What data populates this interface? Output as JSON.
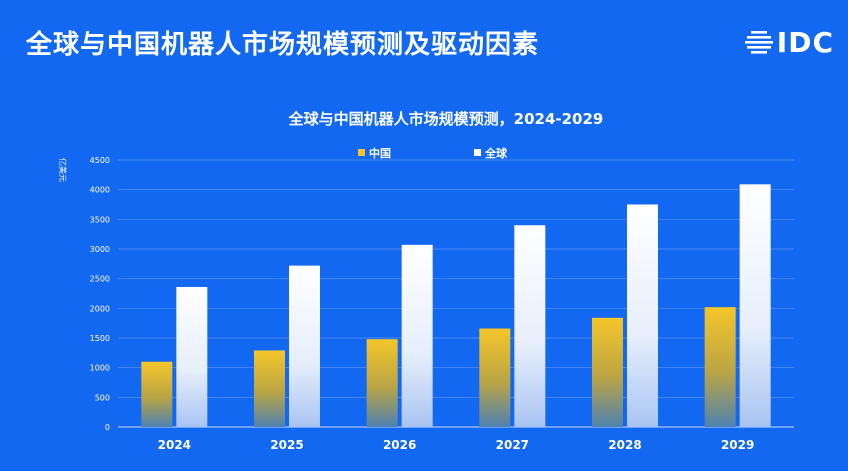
{
  "header": {
    "title": "全球与中国机器人市场规模预测及驱动因素",
    "logo_text": "IDC"
  },
  "colors": {
    "background": "#1268f0",
    "china_bar": "#f2c230",
    "global_bar": "#ffffff"
  },
  "chart_data": {
    "type": "bar",
    "title": "全球与中国机器人市场规模预测，2024-2029",
    "ylabel": "亿美元",
    "xlabel": "",
    "categories": [
      "2024",
      "2025",
      "2026",
      "2027",
      "2028",
      "2029"
    ],
    "series": [
      {
        "name": "中国",
        "values": [
          1100,
          1290,
          1480,
          1660,
          1840,
          2020
        ]
      },
      {
        "name": "全球",
        "values": [
          2360,
          2720,
          3070,
          3400,
          3750,
          4090
        ]
      }
    ],
    "ylim": [
      0,
      4500
    ],
    "yticks": [
      0,
      500,
      1000,
      1500,
      2000,
      2500,
      3000,
      3500,
      4000,
      4500
    ],
    "grid": true,
    "legend_position": "top-center"
  }
}
